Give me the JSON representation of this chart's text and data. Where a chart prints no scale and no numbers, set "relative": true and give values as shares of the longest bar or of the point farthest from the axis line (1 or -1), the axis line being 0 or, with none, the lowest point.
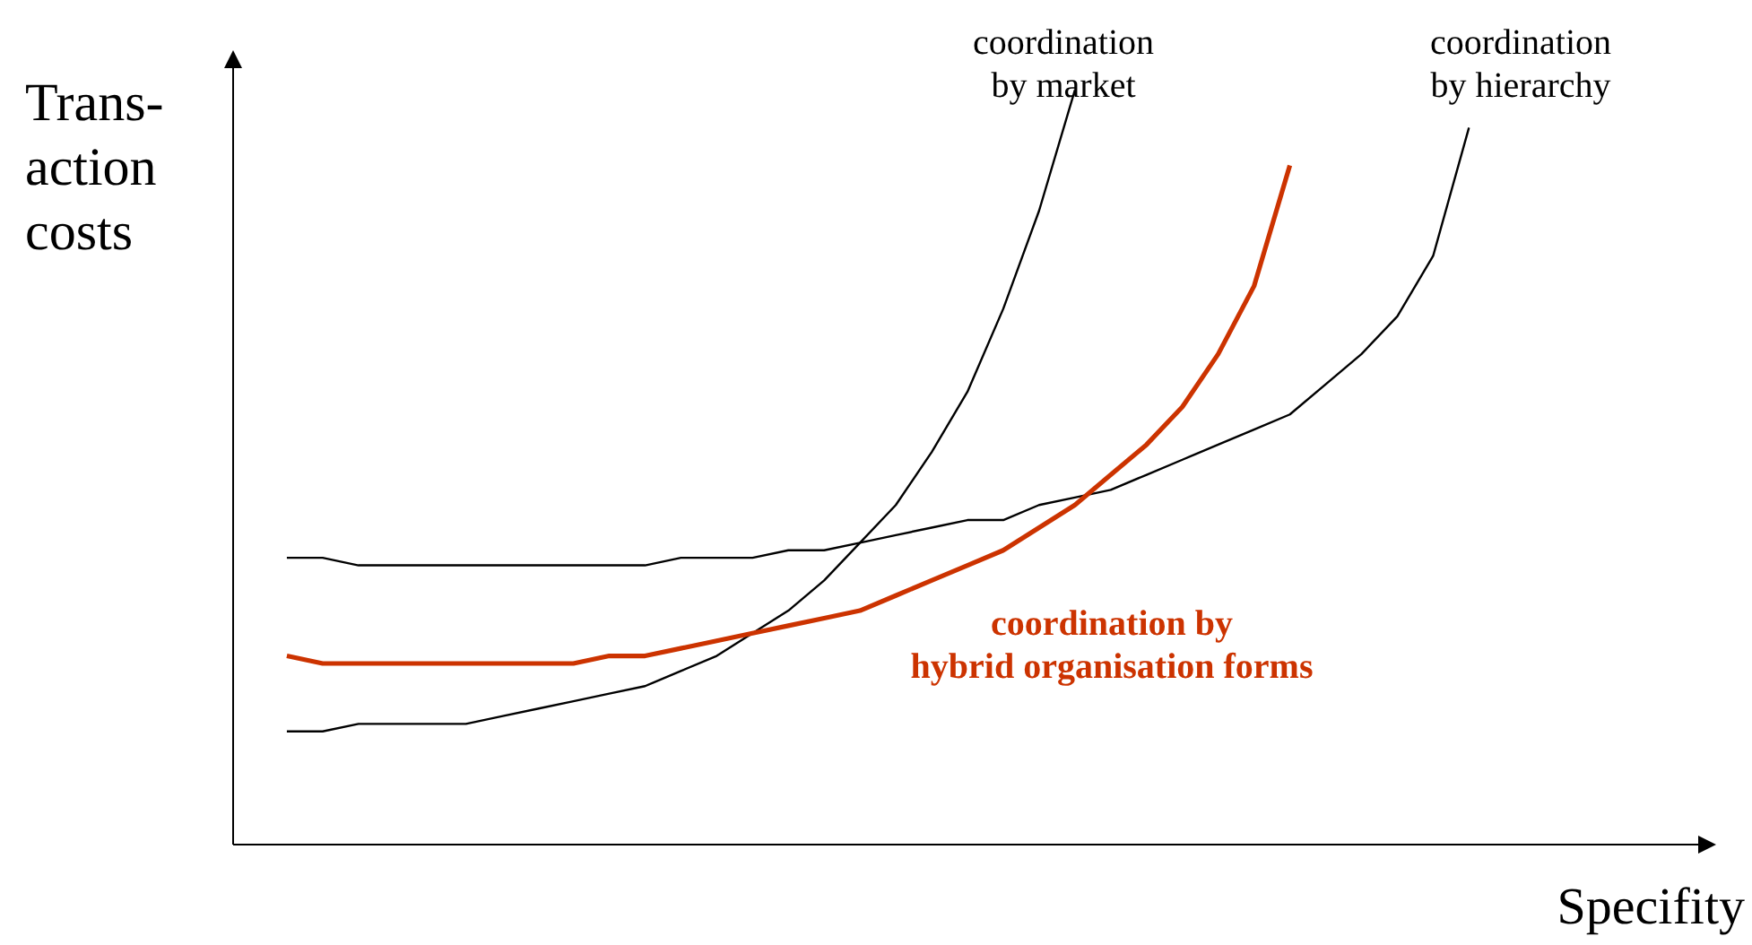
{
  "chart_data": {
    "type": "line",
    "relative": true,
    "xlabel": "Specifity",
    "ylabel": "Trans-\naction\ncosts",
    "categories": [
      null,
      null,
      null,
      null,
      null,
      null,
      null,
      null,
      null,
      null,
      null,
      null,
      null,
      null,
      null,
      null,
      null,
      null,
      null,
      null,
      null,
      null,
      null,
      null,
      null,
      null,
      null,
      null,
      null,
      null,
      null,
      null,
      null,
      null
    ],
    "series": [
      {
        "name": "coordination\nby market",
        "color": "#000000",
        "values": [
          0.15,
          0.15,
          0.16,
          0.16,
          0.16,
          0.16,
          0.17,
          0.18,
          0.19,
          0.2,
          0.21,
          0.23,
          0.25,
          0.28,
          0.31,
          0.35,
          0.4,
          0.45,
          0.52,
          0.6,
          0.71,
          0.84,
          1.0,
          null,
          null,
          null,
          null,
          null,
          null,
          null,
          null,
          null,
          null,
          null
        ]
      },
      {
        "name": "coordination\nby hierarchy",
        "color": "#000000",
        "values": [
          0.38,
          0.38,
          0.37,
          0.37,
          0.37,
          0.37,
          0.37,
          0.37,
          0.37,
          0.37,
          0.37,
          0.38,
          0.38,
          0.38,
          0.39,
          0.39,
          0.4,
          0.41,
          0.42,
          0.43,
          0.43,
          0.45,
          0.46,
          0.47,
          0.49,
          0.51,
          0.53,
          0.55,
          0.57,
          0.61,
          0.65,
          0.7,
          0.78,
          0.95
        ]
      },
      {
        "name": "coordination by\nhybrid organisation forms",
        "color": "#cc3300",
        "values": [
          0.25,
          0.24,
          0.24,
          0.24,
          0.24,
          0.24,
          0.24,
          0.24,
          0.24,
          0.25,
          0.25,
          0.26,
          0.27,
          0.28,
          0.29,
          0.3,
          0.31,
          0.33,
          0.35,
          0.37,
          0.39,
          0.42,
          0.45,
          0.49,
          0.53,
          0.58,
          0.65,
          0.74,
          0.9,
          null,
          null,
          null,
          null,
          null
        ]
      }
    ]
  }
}
